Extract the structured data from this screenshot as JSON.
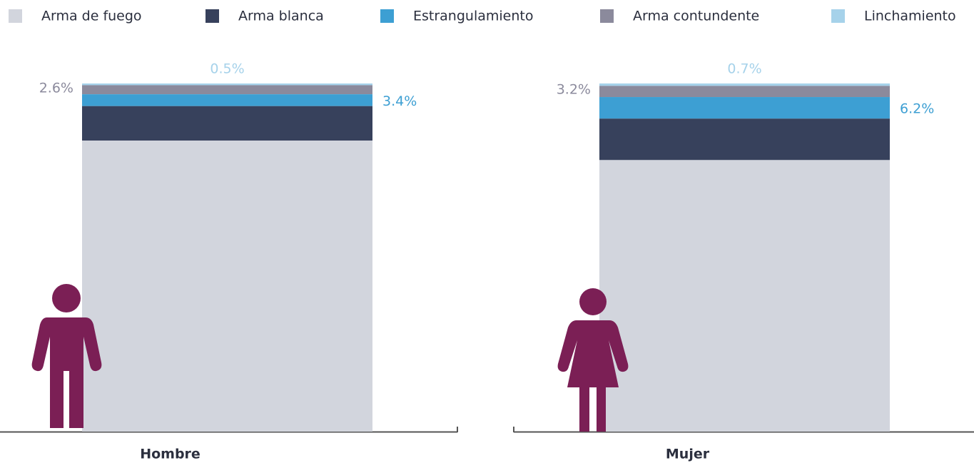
{
  "chart_data": {
    "type": "stacked_bar",
    "categories": [
      "Hombre",
      "Mujer"
    ],
    "series": [
      {
        "name": "Arma de fuego",
        "color": "#d2d5dd",
        "values": [
          83.6,
          78.0
        ],
        "value_labels": [
          "83.6%",
          "78.0%"
        ]
      },
      {
        "name": "Arma blanca",
        "color": "#37415c",
        "values": [
          9.9,
          11.9
        ],
        "value_labels": [
          "9.9%",
          "11.9%"
        ]
      },
      {
        "name": "Estrangulamiento",
        "color": "#3d9fd3",
        "values": [
          3.4,
          6.2
        ],
        "value_labels": [
          "3.4%",
          "6.2%"
        ]
      },
      {
        "name": "Arma contundente",
        "color": "#8b8a9c",
        "values": [
          2.6,
          3.2
        ],
        "value_labels": [
          "2.6%",
          "3.2%"
        ]
      },
      {
        "name": "Linchamiento",
        "color": "#a6d2ea",
        "values": [
          0.5,
          0.7
        ],
        "value_labels": [
          "0.5%",
          "0.7%"
        ]
      }
    ],
    "legend": "top"
  }
}
